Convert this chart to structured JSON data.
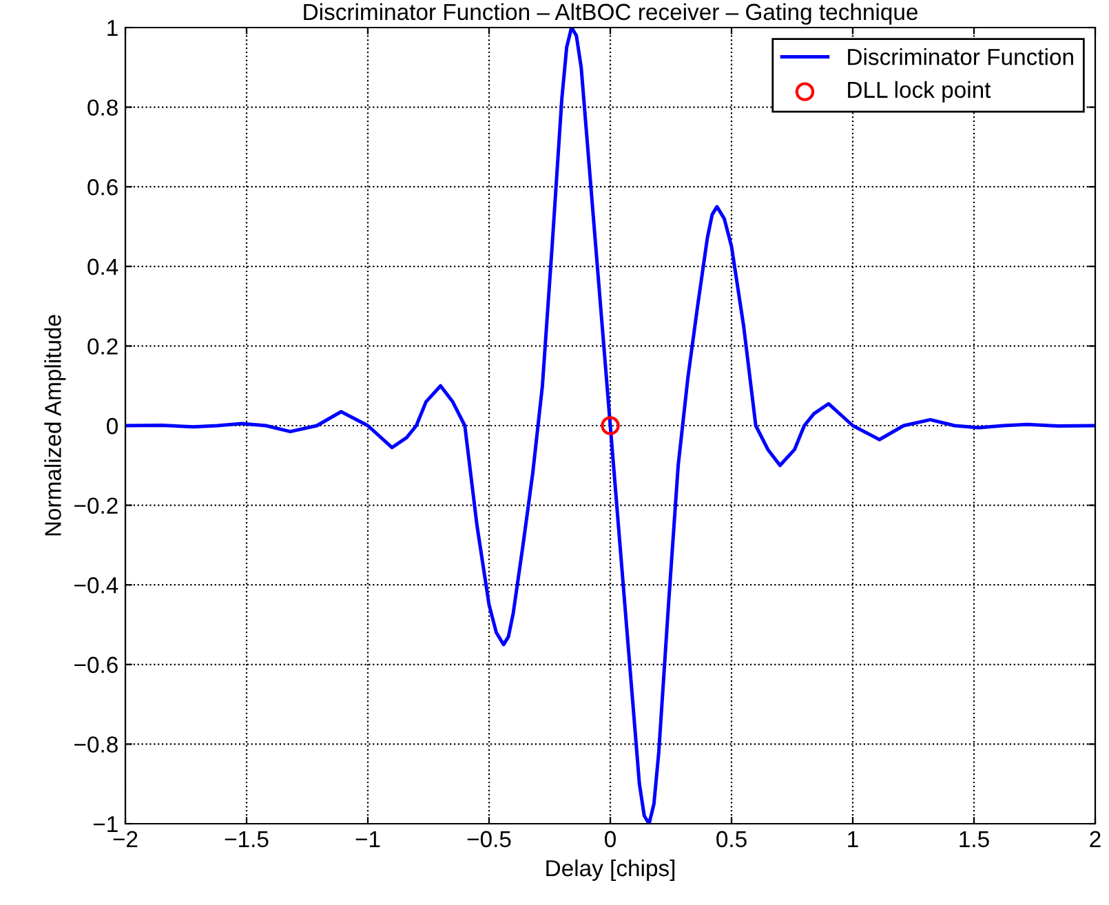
{
  "chart_data": {
    "type": "line",
    "title": "Discriminator Function – AltBOC receiver – Gating technique",
    "xlabel": "Delay [chips]",
    "ylabel": "Normalized Amplitude",
    "xlim": [
      -2,
      2
    ],
    "ylim": [
      -1,
      1
    ],
    "xticks": [
      {
        "value": -2,
        "label": "−2"
      },
      {
        "value": -1.5,
        "label": "−1.5"
      },
      {
        "value": -1,
        "label": "−1"
      },
      {
        "value": -0.5,
        "label": "−0.5"
      },
      0,
      0.5,
      1,
      1.5,
      2
    ],
    "yticks": [
      {
        "value": -1,
        "label": "−1"
      },
      {
        "value": -0.8,
        "label": "−0.8"
      },
      {
        "value": -0.6,
        "label": "−0.6"
      },
      {
        "value": -0.4,
        "label": "−0.4"
      },
      {
        "value": -0.2,
        "label": "−0.2"
      },
      0,
      0.2,
      0.4,
      0.6,
      0.8,
      1
    ],
    "grid": true,
    "legend": "top right",
    "series": [
      {
        "name": "Discriminator Function",
        "color": "#0000ff",
        "marker": "none",
        "line_style": "solid",
        "x": [
          -2.0,
          -1.85,
          -1.72,
          -1.62,
          -1.52,
          -1.42,
          -1.32,
          -1.21,
          -1.11,
          -1.0,
          -0.9,
          -0.84,
          -0.8,
          -0.76,
          -0.7,
          -0.65,
          -0.6,
          -0.55,
          -0.5,
          -0.47,
          -0.44,
          -0.42,
          -0.4,
          -0.36,
          -0.32,
          -0.28,
          -0.24,
          -0.2,
          -0.18,
          -0.16,
          -0.14,
          -0.12,
          -0.08,
          -0.04,
          0,
          0.04,
          0.08,
          0.12,
          0.14,
          0.16,
          0.18,
          0.2,
          0.24,
          0.28,
          0.32,
          0.36,
          0.4,
          0.42,
          0.44,
          0.47,
          0.5,
          0.55,
          0.6,
          0.65,
          0.7,
          0.76,
          0.8,
          0.84,
          0.9,
          1.0,
          1.11,
          1.21,
          1.32,
          1.42,
          1.52,
          1.62,
          1.72,
          1.85,
          2.0
        ],
        "values": [
          0,
          0.001,
          -0.003,
          0,
          0.005,
          0,
          -0.015,
          0,
          0.035,
          0,
          -0.055,
          -0.03,
          0,
          0.06,
          0.1,
          0.06,
          0,
          -0.25,
          -0.45,
          -0.52,
          -0.55,
          -0.53,
          -0.47,
          -0.3,
          -0.12,
          0.1,
          0.45,
          0.82,
          0.95,
          1.0,
          0.98,
          0.9,
          0.6,
          0.3,
          0,
          -0.3,
          -0.6,
          -0.9,
          -0.98,
          -1.0,
          -0.95,
          -0.82,
          -0.45,
          -0.1,
          0.12,
          0.3,
          0.47,
          0.53,
          0.55,
          0.52,
          0.45,
          0.25,
          0,
          -0.06,
          -0.1,
          -0.06,
          0,
          0.03,
          0.055,
          0,
          -0.035,
          0,
          0.015,
          0,
          -0.005,
          0,
          0.003,
          -0.001,
          0
        ]
      },
      {
        "name": "DLL lock point",
        "type": "scatter",
        "color": "#ff0000",
        "marker": "circle",
        "x": [
          0
        ],
        "values": [
          0
        ]
      }
    ]
  }
}
